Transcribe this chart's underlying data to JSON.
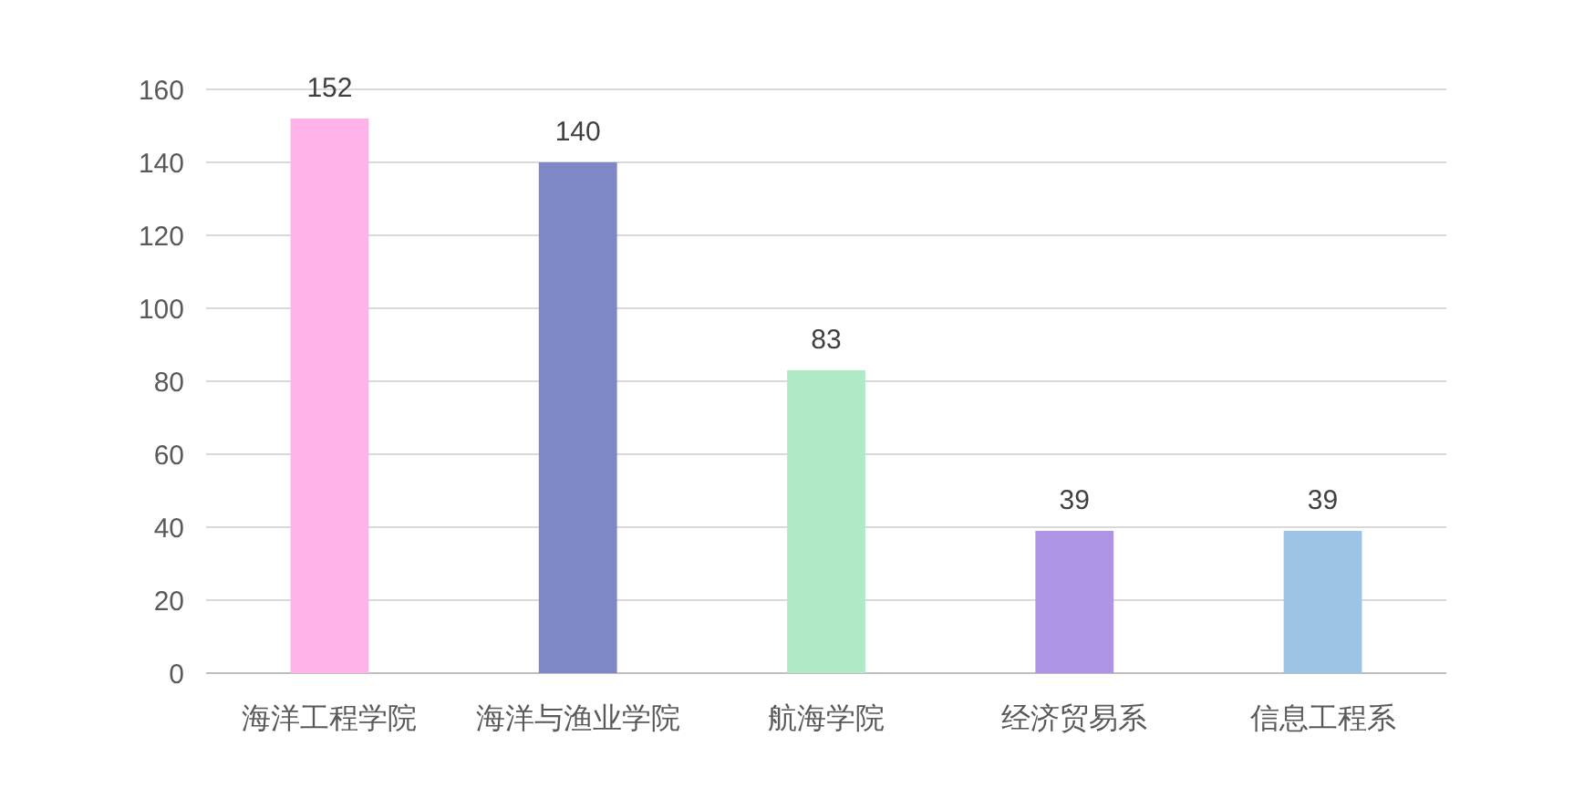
{
  "chart_data": {
    "type": "bar",
    "categories": [
      "海洋工程学院",
      "海洋与渔业学院",
      "航海学院",
      "经济贸易系",
      "信息工程系"
    ],
    "values": [
      152,
      140,
      83,
      39,
      39
    ],
    "colors": [
      "#ffb3e8",
      "#7f88c6",
      "#b0e9c6",
      "#ae94e4",
      "#9dc3e6"
    ],
    "ylim": [
      0,
      160
    ],
    "yticks": [
      0,
      20,
      40,
      60,
      80,
      100,
      120,
      140,
      160
    ],
    "grid": "y",
    "data_labels": true
  }
}
